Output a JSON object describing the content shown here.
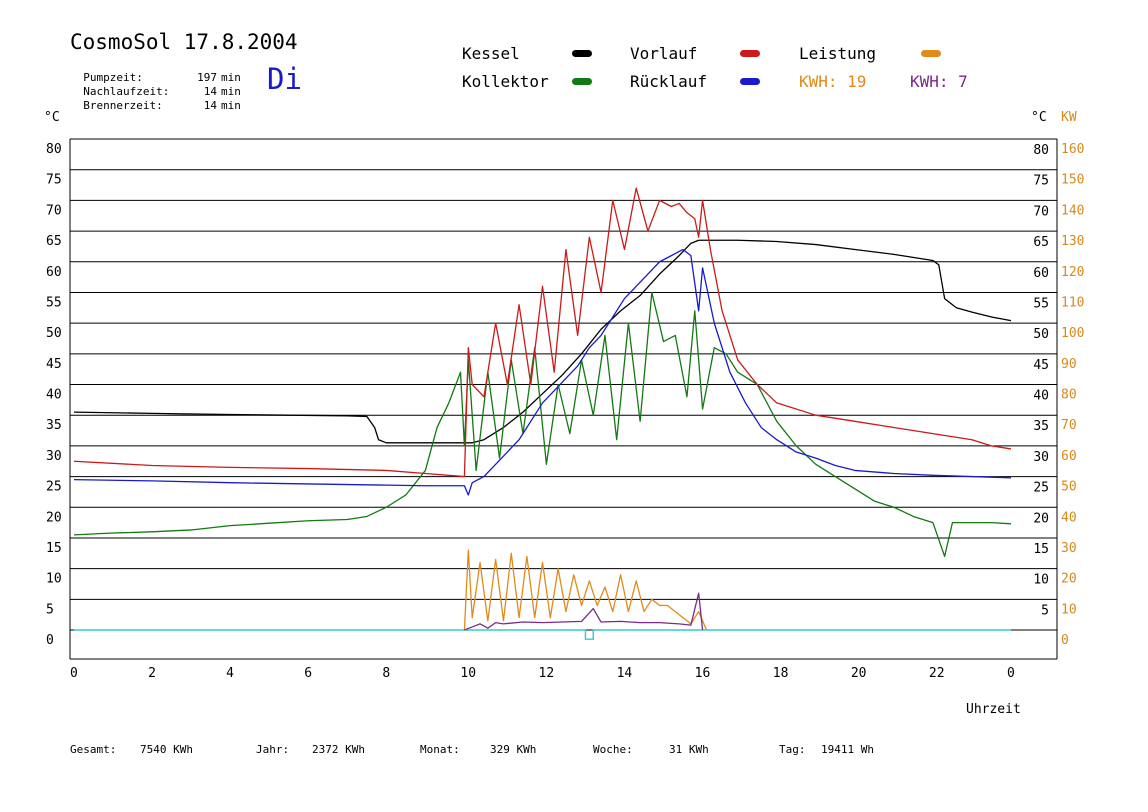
{
  "header": {
    "title": "CosmoSol 17.8.2004",
    "day": "Di",
    "info": [
      {
        "label": "Pumpzeit:",
        "value": "197",
        "unit": "min"
      },
      {
        "label": "Nachlaufzeit:",
        "value": "14",
        "unit": "min"
      },
      {
        "label": "Brennerzeit:",
        "value": "14",
        "unit": "min"
      }
    ]
  },
  "legend": {
    "kessel": "Kessel",
    "kollektor": "Kollektor",
    "vorlauf": "Vorlauf",
    "ruecklauf": "Rücklauf",
    "leistung": "Leistung",
    "kwh1": "KWH: 19",
    "kwh2": "KWH: 7"
  },
  "axes": {
    "left_unit": "°C",
    "right_unit": "°C",
    "right_unit2": "KW",
    "xlabel": "Uhrzeit"
  },
  "footer": {
    "gesamt_label": "Gesamt:",
    "gesamt_value": "7540 KWh",
    "jahr_label": "Jahr:",
    "jahr_value": "2372 KWh",
    "monat_label": "Monat:",
    "monat_value": "329 KWh",
    "woche_label": "Woche:",
    "woche_value": "31 KWh",
    "tag_label": "Tag:",
    "tag_value": "19411 Wh"
  },
  "colors": {
    "kessel": "#000000",
    "kollektor": "#117a11",
    "vorlauf": "#cc1a1a",
    "ruecklauf": "#1a1acc",
    "leistung": "#e08a1a",
    "kwh2": "#7a2a8a",
    "baseline": "#33cccc",
    "axis_right_kw": "#d68a1a"
  },
  "chart_data": {
    "type": "line",
    "xlabel": "Uhrzeit",
    "ylabel_left": "°C",
    "ylabel_right": "KW",
    "xlim": [
      0,
      24
    ],
    "ylim": [
      0,
      80
    ],
    "ylim_right_kw": [
      0,
      160
    ],
    "xticks": [
      0,
      2,
      4,
      6,
      8,
      10,
      12,
      14,
      16,
      18,
      20,
      22,
      "0"
    ],
    "yticks_left": [
      0,
      5,
      10,
      15,
      20,
      25,
      30,
      35,
      40,
      45,
      50,
      55,
      60,
      65,
      70,
      75,
      80
    ],
    "yticks_right_c": [
      5,
      10,
      15,
      20,
      25,
      30,
      35,
      40,
      45,
      50,
      55,
      60,
      65,
      70,
      75,
      80
    ],
    "yticks_right_kw": [
      0,
      10,
      20,
      30,
      40,
      50,
      60,
      70,
      80,
      90,
      100,
      110,
      120,
      130,
      140,
      150,
      160
    ],
    "grid": true,
    "series": [
      {
        "name": "Kessel",
        "color": "#000000",
        "x": [
          0,
          2,
          4,
          5.5,
          7,
          7.5,
          7.7,
          7.8,
          8,
          9,
          9.8,
          10.2,
          10.5,
          11,
          11.5,
          12,
          12.5,
          13,
          13.5,
          14,
          14.5,
          15,
          15.5,
          15.8,
          16,
          17,
          18,
          19,
          20,
          21,
          22,
          22.15,
          22.3,
          22.6,
          23,
          23.5,
          24
        ],
        "y": [
          35.5,
          35.3,
          35.1,
          35,
          34.9,
          34.8,
          33,
          31,
          30.5,
          30.5,
          30.5,
          30.5,
          31,
          33,
          35.5,
          38.5,
          41.5,
          45,
          49,
          52,
          54.5,
          58,
          61,
          63,
          63.5,
          63.5,
          63.3,
          62.8,
          62,
          61.2,
          60.2,
          59.5,
          54,
          52.5,
          51.8,
          51,
          50.4
        ]
      },
      {
        "name": "Kollektor",
        "color": "#117a11",
        "x": [
          0,
          1,
          2,
          3,
          4,
          5,
          6,
          7,
          7.5,
          8,
          8.5,
          9,
          9.3,
          9.6,
          9.9,
          10,
          10.1,
          10.3,
          10.6,
          10.9,
          11.2,
          11.5,
          11.8,
          12.1,
          12.4,
          12.7,
          13,
          13.3,
          13.6,
          13.9,
          14.2,
          14.5,
          14.8,
          15.1,
          15.4,
          15.7,
          15.9,
          16.1,
          16.4,
          16.7,
          17,
          17.5,
          18,
          18.5,
          19,
          19.5,
          20,
          20.5,
          21,
          21.5,
          22,
          22.3,
          22.5,
          23,
          23.5,
          24
        ],
        "y": [
          15.5,
          15.8,
          16,
          16.3,
          17,
          17.4,
          17.8,
          18,
          18.5,
          20,
          22,
          26,
          33,
          37,
          42,
          30,
          44,
          26,
          42,
          28,
          44,
          32,
          46,
          27,
          40,
          32,
          44,
          35,
          48,
          31,
          50,
          34,
          55,
          47,
          48,
          38,
          52,
          36,
          46,
          45,
          42,
          40,
          34,
          30,
          27,
          25,
          23,
          21,
          20,
          18.5,
          17.5,
          12,
          17.5,
          17.5,
          17.5,
          17.3
        ]
      },
      {
        "name": "Vorlauf",
        "color": "#cc1a1a",
        "x": [
          0,
          2,
          4,
          6,
          8,
          9,
          10,
          10.1,
          10.2,
          10.5,
          10.8,
          11.1,
          11.4,
          11.7,
          12,
          12.3,
          12.6,
          12.9,
          13.2,
          13.5,
          13.8,
          14.1,
          14.4,
          14.7,
          15,
          15.3,
          15.5,
          15.7,
          15.9,
          16,
          16.1,
          16.3,
          16.6,
          17,
          17.5,
          18,
          19,
          20,
          21,
          22,
          23,
          23.5,
          24
        ],
        "y": [
          27.5,
          26.8,
          26.5,
          26.3,
          26,
          25.5,
          25,
          46,
          40,
          38,
          50,
          40,
          53,
          40,
          56,
          42,
          62,
          48,
          64,
          55,
          70,
          62,
          72,
          65,
          70,
          69,
          69.5,
          68,
          67,
          64,
          70,
          62,
          52,
          44,
          40,
          37,
          35,
          34,
          33,
          32,
          31,
          30,
          29.5
        ]
      },
      {
        "name": "Rücklauf",
        "color": "#1a1acc",
        "x": [
          0,
          2,
          4,
          6,
          8,
          9,
          10,
          10.1,
          10.2,
          10.5,
          10.8,
          11.1,
          11.4,
          11.7,
          12,
          12.3,
          12.6,
          12.9,
          13.2,
          13.5,
          13.8,
          14.1,
          14.4,
          14.7,
          15,
          15.3,
          15.6,
          15.8,
          16,
          16.1,
          16.4,
          16.8,
          17.2,
          17.6,
          18,
          18.5,
          19,
          19.5,
          20,
          21,
          22,
          23,
          24
        ],
        "y": [
          24.5,
          24.3,
          24,
          23.8,
          23.6,
          23.5,
          23.5,
          22,
          24,
          25,
          27,
          29,
          31,
          34,
          37,
          39,
          41,
          43,
          46,
          48,
          51,
          54,
          56,
          58,
          60,
          61,
          62,
          61,
          52,
          59,
          50,
          42,
          37,
          33,
          31,
          29,
          28,
          26.8,
          26,
          25.5,
          25.2,
          25,
          24.8
        ]
      },
      {
        "name": "Leistung",
        "color": "#e08a1a",
        "x": [
          10,
          10.1,
          10.2,
          10.4,
          10.6,
          10.8,
          11,
          11.2,
          11.4,
          11.6,
          11.8,
          12,
          12.2,
          12.4,
          12.6,
          12.8,
          13,
          13.2,
          13.4,
          13.6,
          13.8,
          14,
          14.2,
          14.4,
          14.6,
          14.8,
          15,
          15.2,
          15.4,
          15.6,
          15.8,
          16,
          16.2
        ],
        "y": [
          0,
          26,
          4,
          22,
          3,
          23,
          3,
          25,
          4,
          24,
          4,
          22,
          4,
          20,
          6,
          18,
          8,
          16,
          8,
          14,
          6,
          18,
          6,
          16,
          6,
          10,
          8,
          8,
          6,
          4,
          2,
          6,
          0
        ]
      },
      {
        "name": "KWH: 7",
        "color": "#7a2a8a",
        "x": [
          10,
          10.2,
          10.4,
          10.6,
          10.8,
          11,
          11.5,
          12,
          12.5,
          13,
          13.3,
          13.5,
          14,
          14.5,
          15,
          15.5,
          15.8,
          16,
          16.1
        ],
        "y": [
          0,
          0.5,
          1,
          0.3,
          1.2,
          1,
          1.3,
          1.2,
          1.3,
          1.4,
          3.5,
          1.3,
          1.4,
          1.2,
          1.2,
          1,
          0.8,
          6,
          0
        ]
      }
    ]
  }
}
